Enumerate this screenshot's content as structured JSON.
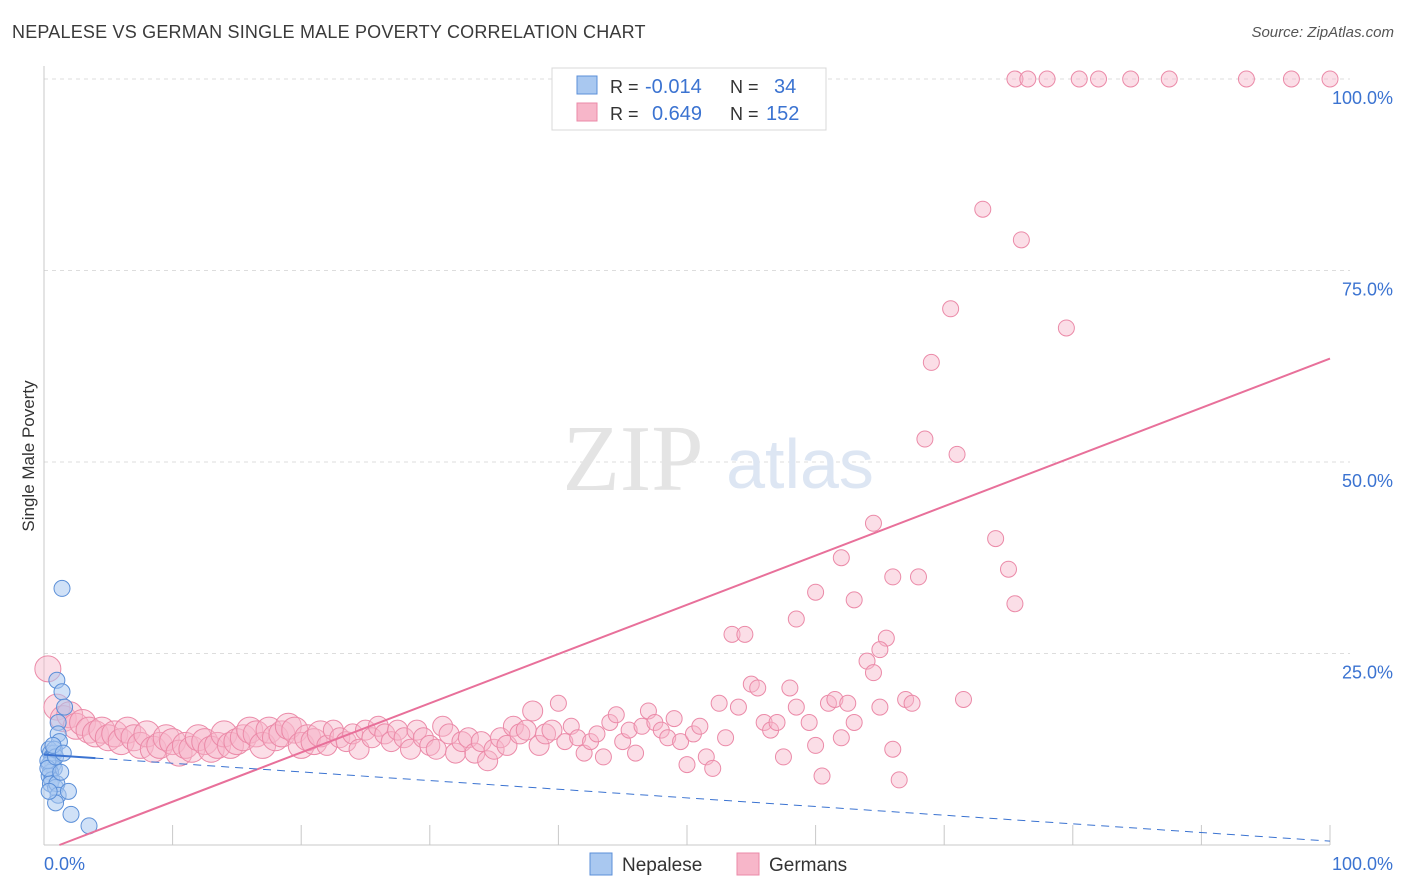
{
  "header": {
    "title": "NEPALESE VS GERMAN SINGLE MALE POVERTY CORRELATION CHART",
    "source": "Source: ZipAtlas.com"
  },
  "watermark": {
    "zip": "ZIP",
    "atlas": "atlas"
  },
  "colors": {
    "nepalese_fill": "#a9c8f0",
    "nepalese_stroke": "#5b8fd8",
    "nepalese_line": "#3b73d1",
    "germans_fill": "#f7b6c9",
    "germans_stroke": "#eb8aa8",
    "germans_line": "#e8709a",
    "value_text": "#3b73d1",
    "grid": "#dddddd"
  },
  "legend_box": {
    "rows": [
      {
        "r_label": "R =",
        "r_value": "-0.014",
        "n_label": "N =",
        "n_value": "34"
      },
      {
        "r_label": "R =",
        "r_value": "0.649",
        "n_label": "N =",
        "n_value": "152"
      }
    ]
  },
  "chart_data": {
    "type": "scatter",
    "title": "NEPALESE VS GERMAN SINGLE MALE POVERTY CORRELATION CHART",
    "xlabel": "",
    "ylabel": "Single Male Poverty",
    "xlim": [
      0,
      100
    ],
    "ylim": [
      0,
      100
    ],
    "x_tick_labels": [
      "0.0%",
      "100.0%"
    ],
    "y_tick_labels": [
      "25.0%",
      "50.0%",
      "75.0%",
      "100.0%"
    ],
    "y_ticks": [
      25,
      50,
      75,
      100
    ],
    "grid": true,
    "legend_position": "bottom-center",
    "series": [
      {
        "name": "Nepalese",
        "r": -0.014,
        "n": 34,
        "trend": {
          "x0": 0,
          "y0": 11.8,
          "x1": 100,
          "y1": 0.5,
          "solid_until_x": 4
        },
        "points": [
          [
            1.4,
            33.5
          ],
          [
            1.0,
            21.5
          ],
          [
            1.4,
            20.0
          ],
          [
            1.6,
            18.0
          ],
          [
            1.1,
            16.0
          ],
          [
            1.1,
            14.5
          ],
          [
            1.2,
            13.5
          ],
          [
            0.4,
            12.5
          ],
          [
            0.5,
            12.0
          ],
          [
            0.6,
            11.5
          ],
          [
            0.6,
            11.0
          ],
          [
            0.8,
            12.0
          ],
          [
            0.7,
            10.5
          ],
          [
            0.4,
            10.5
          ],
          [
            0.8,
            10.0
          ],
          [
            0.5,
            9.5
          ],
          [
            0.4,
            9.0
          ],
          [
            0.3,
            11.0
          ],
          [
            0.6,
            8.5
          ],
          [
            0.5,
            8.0
          ],
          [
            0.9,
            7.5
          ],
          [
            1.0,
            8.0
          ],
          [
            1.1,
            6.5
          ],
          [
            1.9,
            7.0
          ],
          [
            0.9,
            5.5
          ],
          [
            2.1,
            4.0
          ],
          [
            3.5,
            2.5
          ],
          [
            0.8,
            12.5
          ],
          [
            0.3,
            10.0
          ],
          [
            0.9,
            11.5
          ],
          [
            0.4,
            7.0
          ],
          [
            1.3,
            9.5
          ],
          [
            0.7,
            13.0
          ],
          [
            1.5,
            12.0
          ]
        ]
      },
      {
        "name": "Germans",
        "r": 0.649,
        "n": 152,
        "trend": {
          "x0": 1.2,
          "y0": 0,
          "x1": 100,
          "y1": 63.5
        },
        "points": [
          [
            0.3,
            23.0
          ],
          [
            1.0,
            18.0
          ],
          [
            1.5,
            16.5
          ],
          [
            2.0,
            17.0
          ],
          [
            2.5,
            15.5
          ],
          [
            3.0,
            16.0
          ],
          [
            3.5,
            15.0
          ],
          [
            4.0,
            14.5
          ],
          [
            4.5,
            15.0
          ],
          [
            5.0,
            14.0
          ],
          [
            5.5,
            14.5
          ],
          [
            6.0,
            13.5
          ],
          [
            6.5,
            15.0
          ],
          [
            7.0,
            14.0
          ],
          [
            7.5,
            13.0
          ],
          [
            8.0,
            14.5
          ],
          [
            8.5,
            12.5
          ],
          [
            9.0,
            13.0
          ],
          [
            9.5,
            14.0
          ],
          [
            10.0,
            13.5
          ],
          [
            10.5,
            12.0
          ],
          [
            11.0,
            13.0
          ],
          [
            11.5,
            12.5
          ],
          [
            12.0,
            14.0
          ],
          [
            12.5,
            13.5
          ],
          [
            13.0,
            12.5
          ],
          [
            13.5,
            13.0
          ],
          [
            14.0,
            14.5
          ],
          [
            14.5,
            13.0
          ],
          [
            15.0,
            13.5
          ],
          [
            15.5,
            14.0
          ],
          [
            16.0,
            15.0
          ],
          [
            16.5,
            14.5
          ],
          [
            17.0,
            13.0
          ],
          [
            17.5,
            15.0
          ],
          [
            18.0,
            14.0
          ],
          [
            18.5,
            14.5
          ],
          [
            19.0,
            15.5
          ],
          [
            19.5,
            15.0
          ],
          [
            20.0,
            13.0
          ],
          [
            20.5,
            14.0
          ],
          [
            21.0,
            13.5
          ],
          [
            21.5,
            14.5
          ],
          [
            22.0,
            13.0
          ],
          [
            22.5,
            15.0
          ],
          [
            23.0,
            14.0
          ],
          [
            23.5,
            13.5
          ],
          [
            24.0,
            14.5
          ],
          [
            24.5,
            12.5
          ],
          [
            25.0,
            15.0
          ],
          [
            25.5,
            14.0
          ],
          [
            26.0,
            15.5
          ],
          [
            26.5,
            14.5
          ],
          [
            27.0,
            13.5
          ],
          [
            27.5,
            15.0
          ],
          [
            28.0,
            14.0
          ],
          [
            28.5,
            12.5
          ],
          [
            29.0,
            15.0
          ],
          [
            29.5,
            14.0
          ],
          [
            30.0,
            13.0
          ],
          [
            30.5,
            12.5
          ],
          [
            31.0,
            15.5
          ],
          [
            31.5,
            14.5
          ],
          [
            32.0,
            12.0
          ],
          [
            32.5,
            13.5
          ],
          [
            33.0,
            14.0
          ],
          [
            33.5,
            12.0
          ],
          [
            34.0,
            13.5
          ],
          [
            34.5,
            11.0
          ],
          [
            35.0,
            12.5
          ],
          [
            35.5,
            14.0
          ],
          [
            36.0,
            13.0
          ],
          [
            36.5,
            15.5
          ],
          [
            37.0,
            14.5
          ],
          [
            37.5,
            15.0
          ],
          [
            38.0,
            17.5
          ],
          [
            38.5,
            13.0
          ],
          [
            39.0,
            14.5
          ],
          [
            39.5,
            15.0
          ],
          [
            40.0,
            18.5
          ],
          [
            40.5,
            13.5
          ],
          [
            41.0,
            15.5
          ],
          [
            41.5,
            14.0
          ],
          [
            42.0,
            12.0
          ],
          [
            42.5,
            13.5
          ],
          [
            43.0,
            14.5
          ],
          [
            43.5,
            11.5
          ],
          [
            44.0,
            16.0
          ],
          [
            44.5,
            17.0
          ],
          [
            45.0,
            13.5
          ],
          [
            45.5,
            15.0
          ],
          [
            46.0,
            12.0
          ],
          [
            46.5,
            15.5
          ],
          [
            47.0,
            17.5
          ],
          [
            47.5,
            16.0
          ],
          [
            48.0,
            15.0
          ],
          [
            48.5,
            14.0
          ],
          [
            49.0,
            16.5
          ],
          [
            49.5,
            13.5
          ],
          [
            50.0,
            10.5
          ],
          [
            50.5,
            14.5
          ],
          [
            51.0,
            15.5
          ],
          [
            51.5,
            11.5
          ],
          [
            52.0,
            10.0
          ],
          [
            52.5,
            18.5
          ],
          [
            53.0,
            14.0
          ],
          [
            53.5,
            27.5
          ],
          [
            54.0,
            18.0
          ],
          [
            54.5,
            27.5
          ],
          [
            55.0,
            21.0
          ],
          [
            55.5,
            20.5
          ],
          [
            56.0,
            16.0
          ],
          [
            56.5,
            15.0
          ],
          [
            57.0,
            16.0
          ],
          [
            57.5,
            11.5
          ],
          [
            58.0,
            20.5
          ],
          [
            58.5,
            18.0
          ],
          [
            59.5,
            16.0
          ],
          [
            60.0,
            13.0
          ],
          [
            60.5,
            9.0
          ],
          [
            61.0,
            18.5
          ],
          [
            61.5,
            19.0
          ],
          [
            62.0,
            14.0
          ],
          [
            62.5,
            18.5
          ],
          [
            63.0,
            16.0
          ],
          [
            64.0,
            24.0
          ],
          [
            64.5,
            22.5
          ],
          [
            65.0,
            18.0
          ],
          [
            65.5,
            27.0
          ],
          [
            66.0,
            12.5
          ],
          [
            66.5,
            8.5
          ],
          [
            67.0,
            19.0
          ],
          [
            67.5,
            18.5
          ],
          [
            68.5,
            53.0
          ],
          [
            60.0,
            33.0
          ],
          [
            62.0,
            37.5
          ],
          [
            63.0,
            32.0
          ],
          [
            64.5,
            42.0
          ],
          [
            66.0,
            35.0
          ],
          [
            68.0,
            35.0
          ],
          [
            69.0,
            63.0
          ],
          [
            70.5,
            70.0
          ],
          [
            71.0,
            51.0
          ],
          [
            73.0,
            83.0
          ],
          [
            74.0,
            40.0
          ],
          [
            75.0,
            36.0
          ],
          [
            75.5,
            31.5
          ],
          [
            76.0,
            79.0
          ],
          [
            79.5,
            67.5
          ],
          [
            58.5,
            29.5
          ],
          [
            93.5,
            100.0
          ],
          [
            97.0,
            100.0
          ],
          [
            100.0,
            100.0
          ],
          [
            87.5,
            100.0
          ],
          [
            80.5,
            100.0
          ],
          [
            82.0,
            100.0
          ],
          [
            75.5,
            100.0
          ],
          [
            76.5,
            100.0
          ],
          [
            84.5,
            100.0
          ],
          [
            78.0,
            100.0
          ],
          [
            65.0,
            25.5
          ],
          [
            71.5,
            19.0
          ]
        ]
      }
    ]
  }
}
